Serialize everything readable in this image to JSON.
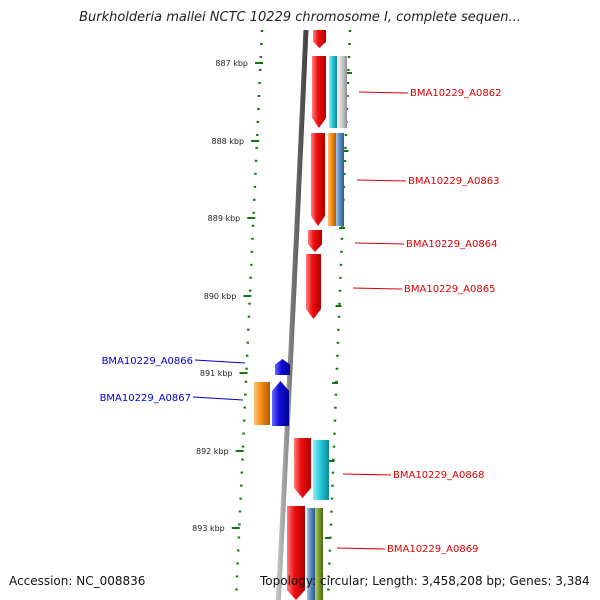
{
  "title": "Burkholderia mallei NCTC 10229 chromosome I, complete sequen...",
  "footer": {
    "accession": "Accession: NC_008836",
    "topology": "Topology: circular; Length: 3,458,208 bp; Genes: 3,384"
  },
  "colors": {
    "forward_label": "#dd0000",
    "reverse_label": "#0000cc",
    "forward_gene": "#ee1111",
    "reverse_gene": "#1111dd",
    "backbone": "#777777",
    "tick": "#117711",
    "cyan_track": "#22c4d4",
    "orange_track": "#f08a10",
    "olive_track": "#7a9a2a",
    "steel_track": "#5588bb"
  },
  "ticks": [
    {
      "label": "887 kbp"
    },
    {
      "label": "888 kbp"
    },
    {
      "label": "889 kbp"
    },
    {
      "label": "890 kbp"
    },
    {
      "label": "891 kbp"
    },
    {
      "label": "892 kbp"
    },
    {
      "label": "893 kbp"
    }
  ],
  "genes": [
    {
      "name": "BMA10229_A0862",
      "strand": "forward"
    },
    {
      "name": "BMA10229_A0863",
      "strand": "forward"
    },
    {
      "name": "BMA10229_A0864",
      "strand": "forward"
    },
    {
      "name": "BMA10229_A0865",
      "strand": "forward"
    },
    {
      "name": "BMA10229_A0866",
      "strand": "reverse"
    },
    {
      "name": "BMA10229_A0867",
      "strand": "reverse"
    },
    {
      "name": "BMA10229_A0868",
      "strand": "forward"
    },
    {
      "name": "BMA10229_A0869",
      "strand": "forward"
    }
  ]
}
